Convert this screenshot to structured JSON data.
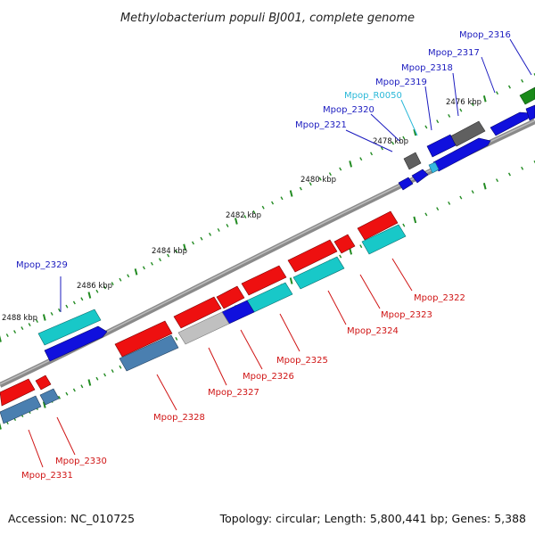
{
  "title": "Methylobacterium populi BJ001, complete genome",
  "footer": {
    "accession": "Accession: NC_010725",
    "summary": "Topology: circular; Length: 5,800,441 bp; Genes: 5,388"
  },
  "colors": {
    "label_blue": "#1b1bbf",
    "label_red": "#d01515",
    "label_cyan": "#2ab8d8",
    "backbone": "#8c8c8c",
    "tick": "#228b22"
  },
  "scale": {
    "labels": [
      {
        "text": "2476 kbp",
        "bp": 2476000
      },
      {
        "text": "2478 kbp",
        "bp": 2478000
      },
      {
        "text": "2480 kbp",
        "bp": 2480000
      },
      {
        "text": "2482 kbp",
        "bp": 2482000
      },
      {
        "text": "2484 kbp",
        "bp": 2484000
      },
      {
        "text": "2486 kbp",
        "bp": 2486000
      },
      {
        "text": "2488 kbp",
        "bp": 2488000
      }
    ]
  },
  "genes": [
    {
      "name": "Mpop_2316",
      "strand": "+",
      "lane": 1,
      "color": "#1a8a1a",
      "labelColor": "#1b1bbf"
    },
    {
      "name": "Mpop_2317",
      "strand": "+",
      "lane": 1,
      "color": "#1010dd",
      "labelColor": "#1b1bbf"
    },
    {
      "name": "Mpop_2318",
      "strand": "+",
      "lane": 0,
      "color": "#606060",
      "labelColor": "#1b1bbf"
    },
    {
      "name": "Mpop_2319",
      "strand": "+",
      "lane": 1,
      "color": "#1010dd",
      "labelColor": "#1b1bbf"
    },
    {
      "name": "Mpop_R0050",
      "strand": "+",
      "lane": 0,
      "color": "#35b8e0",
      "labelColor": "#2ab8d8"
    },
    {
      "name": "Mpop_2320",
      "strand": "+",
      "lane": 0,
      "color": "#606060",
      "labelColor": "#1b1bbf"
    },
    {
      "name": "Mpop_2321",
      "strand": "+",
      "lane": 1,
      "color": "#1010dd",
      "labelColor": "#1b1bbf"
    },
    {
      "name": "Mpop_2322",
      "strand": "-",
      "lane": 0,
      "color": "#ee1010",
      "labelColor": "#d01515"
    },
    {
      "name": "Mpop_2323",
      "strand": "-",
      "lane": 0,
      "color": "#ee1010",
      "labelColor": "#d01515"
    },
    {
      "name": "Mpop_2324",
      "strand": "-",
      "lane": 1,
      "color": "#18c8c8",
      "labelColor": "#d01515"
    },
    {
      "name": "Mpop_2325",
      "strand": "-",
      "lane": 0,
      "color": "#ee1010",
      "labelColor": "#d01515"
    },
    {
      "name": "Mpop_2326",
      "strand": "-",
      "lane": 1,
      "color": "#18c8c8",
      "labelColor": "#d01515"
    },
    {
      "name": "Mpop_2327",
      "strand": "-",
      "lane": 1,
      "color": "#c0c0c0",
      "labelColor": "#d01515"
    },
    {
      "name": "Mpop_2328",
      "strand": "-",
      "lane": 1,
      "color": "#4a7fb0",
      "labelColor": "#d01515"
    },
    {
      "name": "Mpop_2329",
      "strand": "+",
      "lane": 0,
      "color": "#18c8c8",
      "labelColor": "#1b1bbf"
    },
    {
      "name": "Mpop_2330",
      "strand": "-",
      "lane": 0,
      "color": "#ee1010",
      "labelColor": "#d01515"
    },
    {
      "name": "Mpop_2331",
      "strand": "-",
      "lane": 1,
      "color": "#4a7fb0",
      "labelColor": "#d01515"
    }
  ]
}
